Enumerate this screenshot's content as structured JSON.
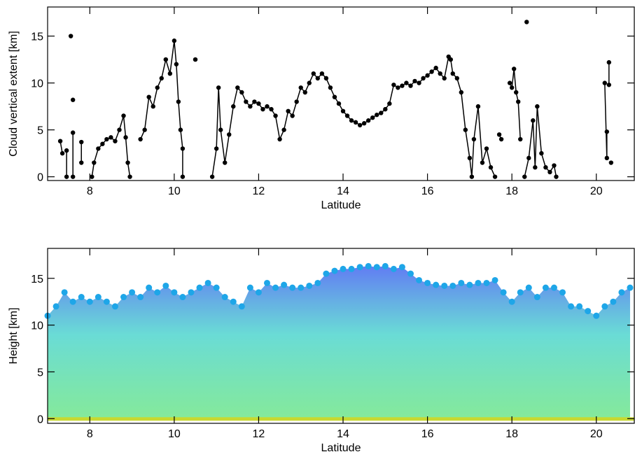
{
  "chart_data": [
    {
      "type": "line",
      "xlabel": "Latitude",
      "ylabel": "Cloud vertical extent [km]",
      "color": "#000000",
      "markers": true,
      "xlim": [
        7.0,
        20.9
      ],
      "ylim": [
        -0.4,
        18.1
      ],
      "xticks": [
        8,
        10,
        12,
        14,
        16,
        18,
        20
      ],
      "yticks": [
        0,
        5,
        10,
        15
      ],
      "x": [
        7.3,
        7.35,
        null,
        7.45,
        7.45,
        null,
        7.55,
        null,
        7.6,
        null,
        7.6,
        7.6,
        null,
        7.8,
        7.8,
        null,
        8.05,
        8.1,
        8.2,
        8.3,
        8.4,
        8.5,
        8.6,
        8.7,
        8.8,
        8.85,
        8.9,
        8.95,
        null,
        9.2,
        9.3,
        9.4,
        9.5,
        9.6,
        9.7,
        9.8,
        9.9,
        10.0,
        10.05,
        10.1,
        10.15,
        10.2,
        10.2,
        null,
        10.5,
        null,
        10.9,
        11.0,
        11.05,
        11.1,
        11.2,
        11.3,
        11.4,
        11.5,
        11.6,
        11.7,
        11.8,
        11.9,
        12.0,
        12.1,
        12.2,
        12.3,
        12.4,
        12.5,
        12.6,
        12.7,
        12.8,
        12.9,
        13.0,
        13.1,
        13.2,
        13.3,
        13.4,
        13.5,
        13.6,
        13.7,
        13.8,
        13.9,
        14.0,
        14.1,
        14.2,
        14.3,
        14.4,
        14.5,
        14.6,
        14.7,
        14.8,
        14.9,
        15.0,
        15.1,
        15.2,
        15.3,
        15.4,
        15.5,
        15.6,
        15.7,
        15.8,
        15.9,
        16.0,
        16.1,
        16.2,
        16.3,
        16.4,
        16.5,
        16.55,
        16.6,
        16.7,
        16.8,
        16.9,
        17.0,
        17.05,
        17.1,
        17.2,
        17.3,
        17.4,
        17.5,
        17.6,
        null,
        17.7,
        17.75,
        null,
        17.95,
        18.0,
        18.05,
        18.1,
        18.15,
        18.2,
        null,
        18.35,
        null,
        18.3,
        18.4,
        18.5,
        18.55,
        18.6,
        18.7,
        18.8,
        18.9,
        19.0,
        19.05,
        null,
        20.2,
        20.25,
        20.25,
        null,
        20.3,
        20.3,
        null,
        20.35
      ],
      "values": [
        3.8,
        2.5,
        null,
        2.8,
        0,
        null,
        15,
        null,
        8.2,
        null,
        4.7,
        0,
        null,
        3.7,
        1.5,
        null,
        0,
        1.5,
        3,
        3.5,
        4,
        4.2,
        3.8,
        5,
        6.5,
        4.2,
        1.5,
        0,
        null,
        4,
        5,
        8.5,
        7.5,
        9.5,
        10.5,
        12.5,
        11,
        14.5,
        12,
        8,
        5,
        3,
        0,
        null,
        12.5,
        null,
        0,
        3,
        9.5,
        5,
        1.5,
        4.5,
        7.5,
        9.5,
        9,
        8,
        7.5,
        8,
        7.8,
        7.2,
        7.5,
        7.2,
        6.5,
        4,
        5,
        7,
        6.5,
        8,
        9.5,
        9,
        10,
        11,
        10.5,
        11,
        10.5,
        9.5,
        8.5,
        7.8,
        7,
        6.5,
        6,
        5.8,
        5.5,
        5.7,
        6,
        6.3,
        6.6,
        6.8,
        7.2,
        7.8,
        9.8,
        9.5,
        9.7,
        10,
        9.7,
        10.2,
        10,
        10.5,
        10.8,
        11.2,
        11.6,
        11,
        10.5,
        12.8,
        12.5,
        11,
        10.5,
        9,
        5,
        2,
        0,
        4,
        7.5,
        1.5,
        3,
        1,
        0,
        null,
        4.5,
        4,
        null,
        10,
        9.5,
        11.5,
        9,
        8,
        4,
        null,
        16.5,
        null,
        0,
        2,
        6,
        1,
        7.5,
        2.5,
        1,
        0.5,
        1.2,
        0,
        null,
        10,
        2,
        4.8,
        null,
        12.2,
        9.8,
        null,
        1.5
      ]
    },
    {
      "type": "area",
      "xlabel": "Latitude",
      "ylabel": "Height [km]",
      "color": "#1ea6e8",
      "markers": true,
      "xlim": [
        7.0,
        20.9
      ],
      "ylim": [
        -0.5,
        18.2
      ],
      "xticks": [
        8,
        10,
        12,
        14,
        16,
        18,
        20
      ],
      "yticks": [
        0,
        5,
        10,
        15
      ],
      "x": [
        7.0,
        7.2,
        7.4,
        7.6,
        7.8,
        8.0,
        8.2,
        8.4,
        8.6,
        8.8,
        9.0,
        9.2,
        9.4,
        9.6,
        9.8,
        10.0,
        10.2,
        10.4,
        10.6,
        10.8,
        11.0,
        11.2,
        11.4,
        11.6,
        11.8,
        12.0,
        12.2,
        12.4,
        12.6,
        12.8,
        13.0,
        13.2,
        13.4,
        13.6,
        13.8,
        14.0,
        14.2,
        14.4,
        14.6,
        14.8,
        15.0,
        15.2,
        15.4,
        15.6,
        15.8,
        16.0,
        16.2,
        16.4,
        16.6,
        16.8,
        17.0,
        17.2,
        17.4,
        17.6,
        17.8,
        18.0,
        18.2,
        18.4,
        18.6,
        18.8,
        19.0,
        19.2,
        19.4,
        19.6,
        19.8,
        20.0,
        20.2,
        20.4,
        20.6,
        20.8
      ],
      "values": [
        11,
        12,
        13.5,
        12.5,
        13,
        12.5,
        13,
        12.5,
        12,
        13,
        13.5,
        13,
        14,
        13.5,
        14.2,
        13.5,
        13,
        13.5,
        14,
        14.5,
        14,
        13,
        12.5,
        12,
        14,
        13.5,
        14.5,
        14,
        14.3,
        14,
        14,
        14.2,
        14.5,
        15.5,
        15.8,
        16,
        16,
        16.2,
        16.3,
        16.2,
        16.3,
        16,
        16.2,
        15.5,
        14.8,
        14.5,
        14.3,
        14.2,
        14.2,
        14.5,
        14.3,
        14.5,
        14.5,
        14.8,
        13.5,
        12.5,
        13.5,
        14,
        13,
        14,
        14,
        13.5,
        12,
        12,
        11.5,
        11,
        12,
        12.5,
        13.5,
        14
      ]
    }
  ]
}
